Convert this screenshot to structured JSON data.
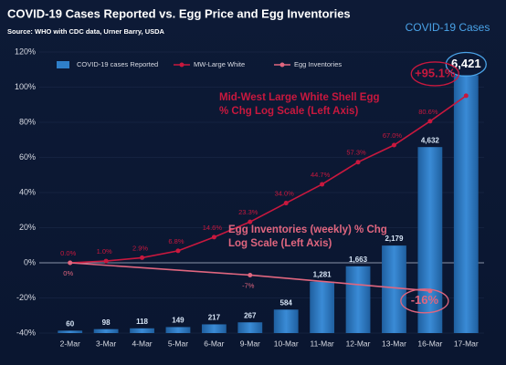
{
  "chart_data": {
    "type": "bar-line",
    "title": "COVID-19 Cases Reported vs. Egg Price and Egg Inventories",
    "subtitle": "Source: WHO with CDC data, Urner Barry, USDA",
    "corner_label": "COVID-19 Cases",
    "categories": [
      "2-Mar",
      "3-Mar",
      "4-Mar",
      "5-Mar",
      "6-Mar",
      "9-Mar",
      "10-Mar",
      "11-Mar",
      "12-Mar",
      "13-Mar",
      "16-Mar",
      "17-Mar"
    ],
    "ylim": [
      -40,
      120
    ],
    "yticks": [
      {
        "value": -40,
        "label": "-40%"
      },
      {
        "value": -20,
        "label": "-20%"
      },
      {
        "value": 0,
        "label": "0%"
      },
      {
        "value": 20,
        "label": "20%"
      },
      {
        "value": 40,
        "label": "40%"
      },
      {
        "value": 60,
        "label": "60%"
      },
      {
        "value": 80,
        "label": "80%"
      },
      {
        "value": 100,
        "label": "100%"
      },
      {
        "value": 120,
        "label": "120%"
      }
    ],
    "y2lim": [
      0,
      7000
    ],
    "grid": true,
    "legend": "top",
    "series": [
      {
        "name": "COVID-19 cases Reported",
        "type": "bar",
        "axis": "y2",
        "color": "#2f7fc9",
        "values": [
          60,
          98,
          118,
          149,
          217,
          267,
          584,
          1281,
          1663,
          2179,
          4632,
          6421
        ],
        "value_labels": [
          "60",
          "98",
          "118",
          "149",
          "217",
          "267",
          "584",
          "1,281",
          "1,663",
          "2,179",
          "4,632",
          "6,421"
        ]
      },
      {
        "name": "MW-Large White",
        "type": "line",
        "color": "#c8183e",
        "values": [
          0.0,
          1.0,
          2.9,
          6.8,
          14.6,
          23.3,
          34.0,
          44.7,
          57.3,
          67.0,
          80.6,
          95.1
        ],
        "value_labels": [
          "0.0%",
          "1.0%",
          "2.9%",
          "6.8%",
          "14.6%",
          "23.3%",
          "34.0%",
          "44.7%",
          "57.3%",
          "67.0%",
          "80.6%",
          "+95.1%"
        ]
      },
      {
        "name": "Egg Inventories",
        "type": "line",
        "color": "#e0667f",
        "x": [
          "2-Mar",
          "9-Mar",
          "16-Mar"
        ],
        "values": [
          0,
          -7,
          -16
        ],
        "value_labels": [
          "0%",
          "-7%",
          "-16%"
        ]
      }
    ],
    "annotations": [
      {
        "lines": [
          "Mid-West Large White Shell Egg",
          "% Chg Log Scale (Left Axis)"
        ]
      },
      {
        "lines": [
          "Egg Inventories (weekly) % Chg",
          "Log Scale (Left Axis)"
        ]
      }
    ]
  }
}
